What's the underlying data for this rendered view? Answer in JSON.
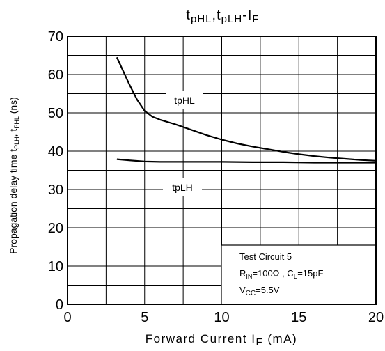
{
  "chart_data": {
    "type": "line",
    "title": {
      "t1": "t",
      "s1": "pHL",
      "mid": ",t",
      "s2": "pLH",
      "mid2": "-I",
      "s3": "F"
    },
    "xlabel": {
      "main": "Forward Current I",
      "sub": "F",
      "unit": " (mA)"
    },
    "ylabel": {
      "pre": "Propagation delay time  t",
      "s1": "PLH",
      "mid": ", t",
      "s2": "PHL",
      "unit": "   (ns)"
    },
    "xlim": [
      0,
      20
    ],
    "ylim": [
      0,
      70
    ],
    "x_ticks": [
      "0",
      "5",
      "10",
      "15",
      "20"
    ],
    "y_ticks": [
      "70",
      "60",
      "50",
      "40",
      "30",
      "20",
      "10",
      "0"
    ],
    "grid": true,
    "series": [
      {
        "name": "tpHL",
        "x": [
          3.2,
          3.6,
          4.0,
          4.5,
          5.0,
          5.5,
          6.0,
          7.0,
          8.0,
          9.0,
          10.0,
          11.0,
          12.0,
          13.0,
          14.0,
          15.0,
          16.0,
          17.0,
          18.0,
          19.0,
          20.0
        ],
        "y": [
          64.5,
          61.0,
          57.5,
          53.5,
          50.5,
          49.0,
          48.2,
          47.0,
          45.6,
          44.2,
          43.0,
          42.0,
          41.2,
          40.5,
          39.8,
          39.2,
          38.7,
          38.3,
          38.0,
          37.7,
          37.5
        ]
      },
      {
        "name": "tpLH",
        "x": [
          3.2,
          4.0,
          5.0,
          6.0,
          8.0,
          10.0,
          12.0,
          14.0,
          16.0,
          18.0,
          20.0
        ],
        "y": [
          37.9,
          37.6,
          37.3,
          37.2,
          37.2,
          37.2,
          37.1,
          37.1,
          37.0,
          37.0,
          37.0
        ]
      }
    ],
    "annotations": {
      "tphl_label": "tpHL",
      "tplh_label": "tpLH",
      "info_line1": "Test Circuit 5",
      "info_line2": {
        "r": "R",
        "rsub": "IN",
        "mid": "=100Ω , C",
        "csub": "L",
        "end": "=15pF"
      },
      "info_line3": {
        "v": "V",
        "vsub": "CC",
        "end": "=5.5V"
      }
    }
  }
}
